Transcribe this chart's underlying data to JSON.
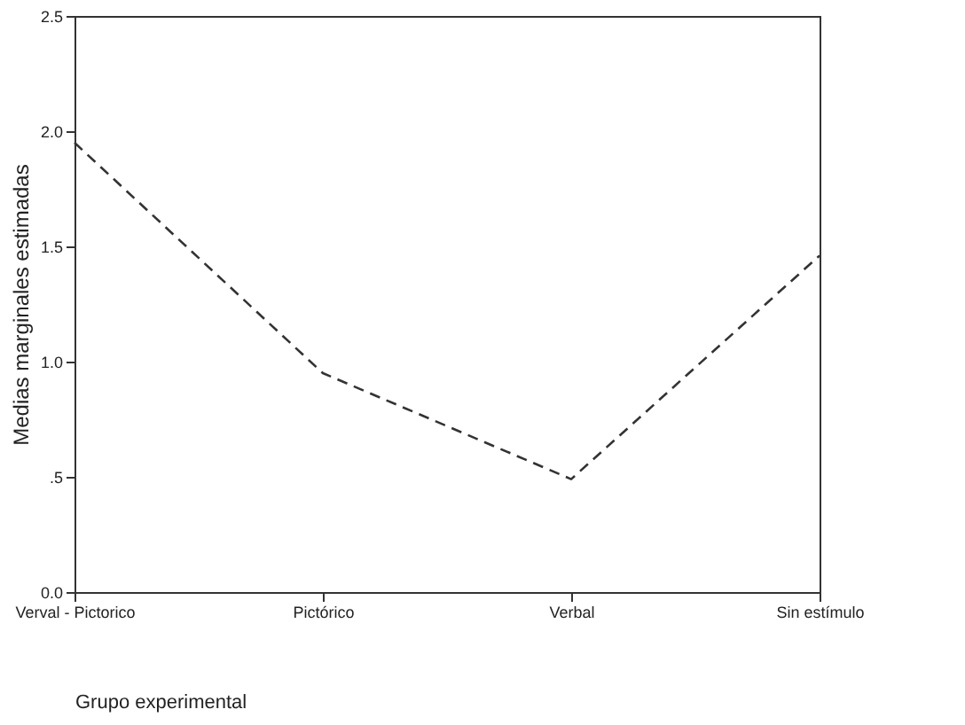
{
  "chart_data": {
    "type": "line",
    "xlabel": "Grupo experimental",
    "ylabel": "Medias marginales estimadas",
    "categories": [
      "Verval - Pictorico",
      "Pictórico",
      "Verbal",
      "Sin estímulo"
    ],
    "series": [
      {
        "color": "#333333",
        "values": [
          1.95,
          0.95,
          0.49,
          1.46
        ]
      }
    ],
    "ylim": [
      0,
      2.5
    ],
    "yticks": [
      {
        "value": 0,
        "label": "0.0"
      },
      {
        "value": 0.5,
        "label": ".5"
      },
      {
        "value": 1,
        "label": "1.0"
      },
      {
        "value": 1.5,
        "label": "1.5"
      },
      {
        "value": 2,
        "label": "2.0"
      },
      {
        "value": 2.5,
        "label": "2.5"
      }
    ],
    "grid": false,
    "legend": false,
    "marker": "none",
    "line_style": "dashed"
  }
}
